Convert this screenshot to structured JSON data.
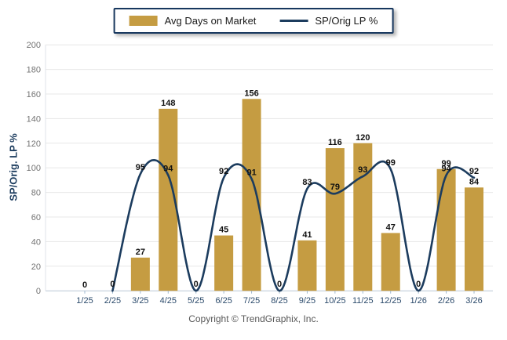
{
  "legend": {
    "items": [
      {
        "label": "Avg Days on Market",
        "swatch": "bar-swatch",
        "color": "#C59C42"
      },
      {
        "label": "SP/Orig LP %",
        "swatch": "line-swatch",
        "color": "#1C3C5E"
      }
    ]
  },
  "footer": {
    "copyright": "Copyright © TrendGraphix, Inc."
  },
  "chart_data": {
    "type": "combo",
    "categories": [
      "1/25",
      "2/25",
      "3/25",
      "4/25",
      "5/25",
      "6/25",
      "7/25",
      "8/25",
      "9/25",
      "10/25",
      "11/25",
      "12/25",
      "1/26",
      "2/26",
      "3/26"
    ],
    "series": [
      {
        "name": "Avg Days on Market",
        "type": "bar",
        "color": "#C59C42",
        "values": [
          0,
          0,
          27,
          148,
          0,
          45,
          156,
          0,
          41,
          116,
          120,
          47,
          0,
          99,
          84
        ],
        "labels": [
          "0",
          "",
          "27",
          "148",
          "",
          "45",
          "156",
          "",
          "41",
          "116",
          "120",
          "47",
          "",
          "99",
          "84"
        ]
      },
      {
        "name": "SP/Orig LP %",
        "type": "line",
        "color": "#1C3C5E",
        "values": [
          null,
          0,
          95,
          94,
          0,
          92,
          91,
          0,
          83,
          79,
          93,
          99,
          0,
          94,
          92
        ],
        "labels": [
          "",
          "0",
          "95",
          "94",
          "0",
          "92",
          "91",
          "0",
          "83",
          "79",
          "93",
          "99",
          "0",
          "94",
          "92"
        ]
      }
    ],
    "title": "",
    "xlabel": "",
    "ylabel": "SP/Orig. LP %",
    "ylim": [
      0,
      200
    ],
    "ytick_step": 20,
    "grid": true,
    "legend_position": "top-center",
    "value_label_color": "#111111",
    "ytick_label_color": "#737373",
    "xtick_label_color": "#2B4A6B",
    "gridline_color": "#e7e7e7",
    "axis_line_color": "#b9c7d6"
  }
}
